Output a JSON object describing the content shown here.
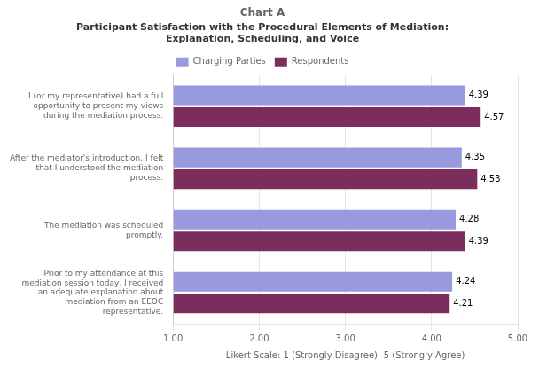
{
  "chart_data": {
    "type": "bar",
    "orientation": "horizontal",
    "title": "Chart A",
    "subtitle": "Participant Satisfaction with the Procedural Elements of Mediation:\nExplanation, Scheduling, and Voice",
    "xlabel": "Likert Scale: 1 (Strongly Disagree) -5 (Strongly Agree)",
    "categories": [
      "Prior to my attendance at this\nmediation session today, I received\nan adequate explanation about\nmediation from an EEOC\nrepresentative.",
      "The mediation was scheduled\npromptly.",
      "After the mediator's introduction, I felt\nthat I understood the mediation\nprocess.",
      "I (or my representative) had a full\nopportunity to present my views\nduring the mediation process."
    ],
    "series": [
      {
        "name": "Charging Parties",
        "color": "#9999DD",
        "values": [
          4.24,
          4.28,
          4.35,
          4.39
        ]
      },
      {
        "name": "Respondents",
        "color": "#7B2D5E",
        "values": [
          4.21,
          4.39,
          4.53,
          4.57
        ]
      }
    ],
    "xlim": [
      1.0,
      5.0
    ],
    "xticks": [
      {
        "value": 1.0,
        "label": "1.00"
      },
      {
        "value": 2.0,
        "label": "2.00"
      },
      {
        "value": 3.0,
        "label": "3.00"
      },
      {
        "value": 4.0,
        "label": "4.00"
      },
      {
        "value": 5.0,
        "label": "5.00"
      }
    ],
    "grid": true,
    "legend": "top",
    "data_labels": true
  }
}
